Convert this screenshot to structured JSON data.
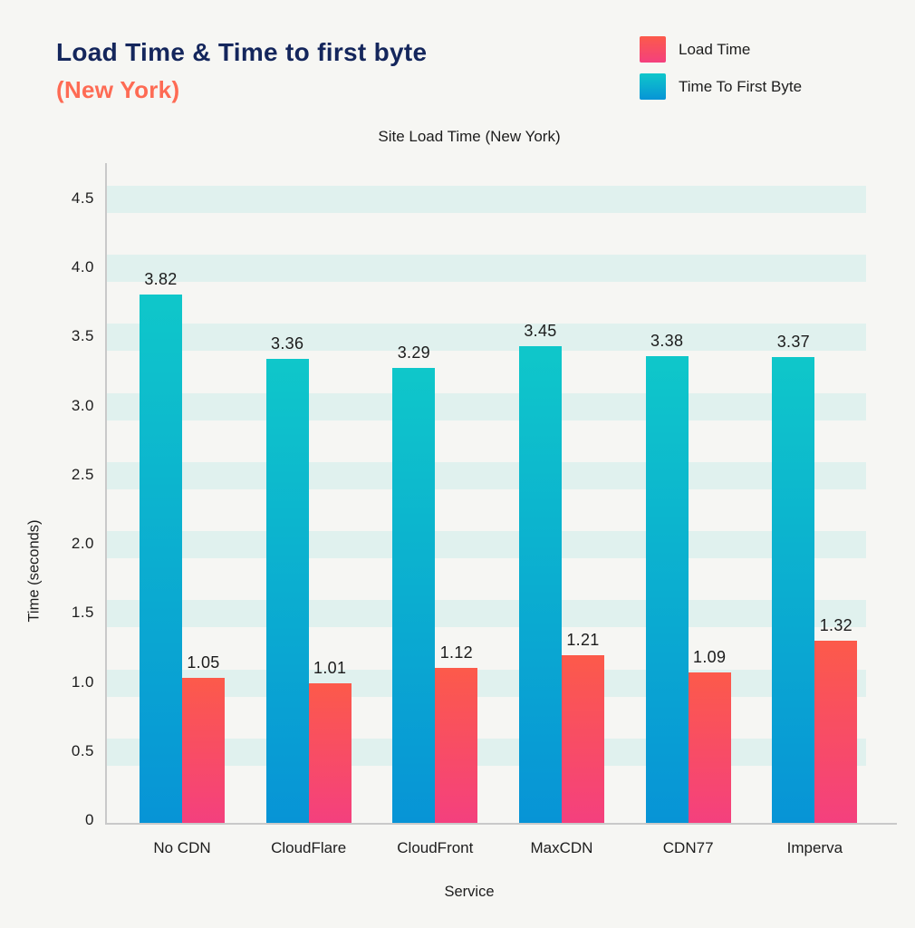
{
  "page": {
    "title": "Load Time & Time to first byte",
    "subtitle": "(New York)",
    "title_color": "#14265C",
    "subtitle_color": "#FE6B54",
    "background": "#F6F6F3"
  },
  "legend": {
    "items": [
      {
        "label": "Load Time",
        "swatch_top": "#FC5A4A",
        "swatch_bottom": "#F4407E"
      },
      {
        "label": "Time To First Byte",
        "swatch_top": "#0FC7CA",
        "swatch_bottom": "#0794D6"
      }
    ]
  },
  "chart_data": {
    "type": "bar",
    "title": "Site Load Time (New York)",
    "xlabel": "Service",
    "ylabel": "Time (seconds)",
    "categories": [
      "No CDN",
      "CloudFlare",
      "CloudFront",
      "MaxCDN",
      "CDN77",
      "Imperva"
    ],
    "series": [
      {
        "name": "Time To First Byte",
        "values": [
          3.82,
          3.36,
          3.29,
          3.45,
          3.38,
          3.37
        ],
        "color_top": "#0FC7CA",
        "color_bottom": "#0794D6"
      },
      {
        "name": "Load Time",
        "values": [
          1.05,
          1.01,
          1.12,
          1.21,
          1.09,
          1.32
        ],
        "color_top": "#FC5A4A",
        "color_bottom": "#F4407E"
      }
    ],
    "ylim": [
      0,
      4.5
    ],
    "yticks": [
      0,
      0.5,
      1.0,
      1.5,
      2.0,
      2.5,
      3.0,
      3.5,
      4.0,
      4.5
    ],
    "grid": "horizontal-bands",
    "band_color": "#E0F1EE",
    "axis_color": "#C9C9C9",
    "legend_position": "top-right"
  }
}
